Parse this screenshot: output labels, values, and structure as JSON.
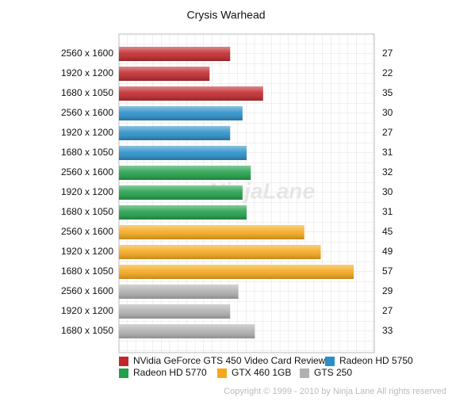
{
  "chart_data": {
    "type": "bar",
    "orientation": "horizontal",
    "title": "Crysis Warhead",
    "categories": [
      "2560 x 1600",
      "1920 x 1200",
      "1680 x 1050"
    ],
    "series": [
      {
        "name": "NVidia GeForce GTS 450 Video Card Review",
        "color": "#c0282c",
        "values": [
          27,
          22,
          35
        ]
      },
      {
        "name": "Radeon HD 5750",
        "color": "#2a8fc8",
        "values": [
          30,
          27,
          31
        ]
      },
      {
        "name": "Radeon HD 5770",
        "color": "#22a04a",
        "values": [
          32,
          30,
          31
        ]
      },
      {
        "name": "GTX 460 1GB",
        "color": "#f5a81c",
        "values": [
          45,
          49,
          57
        ]
      },
      {
        "name": "GTS 250",
        "color": "#b0b0b0",
        "values": [
          29,
          27,
          33
        ]
      }
    ],
    "xlim": [
      0,
      62
    ],
    "grid": true,
    "watermark": "NinjaLane",
    "credit": "Copyright © 1999 - 2010 by Ninja Lane All rights reserved"
  }
}
